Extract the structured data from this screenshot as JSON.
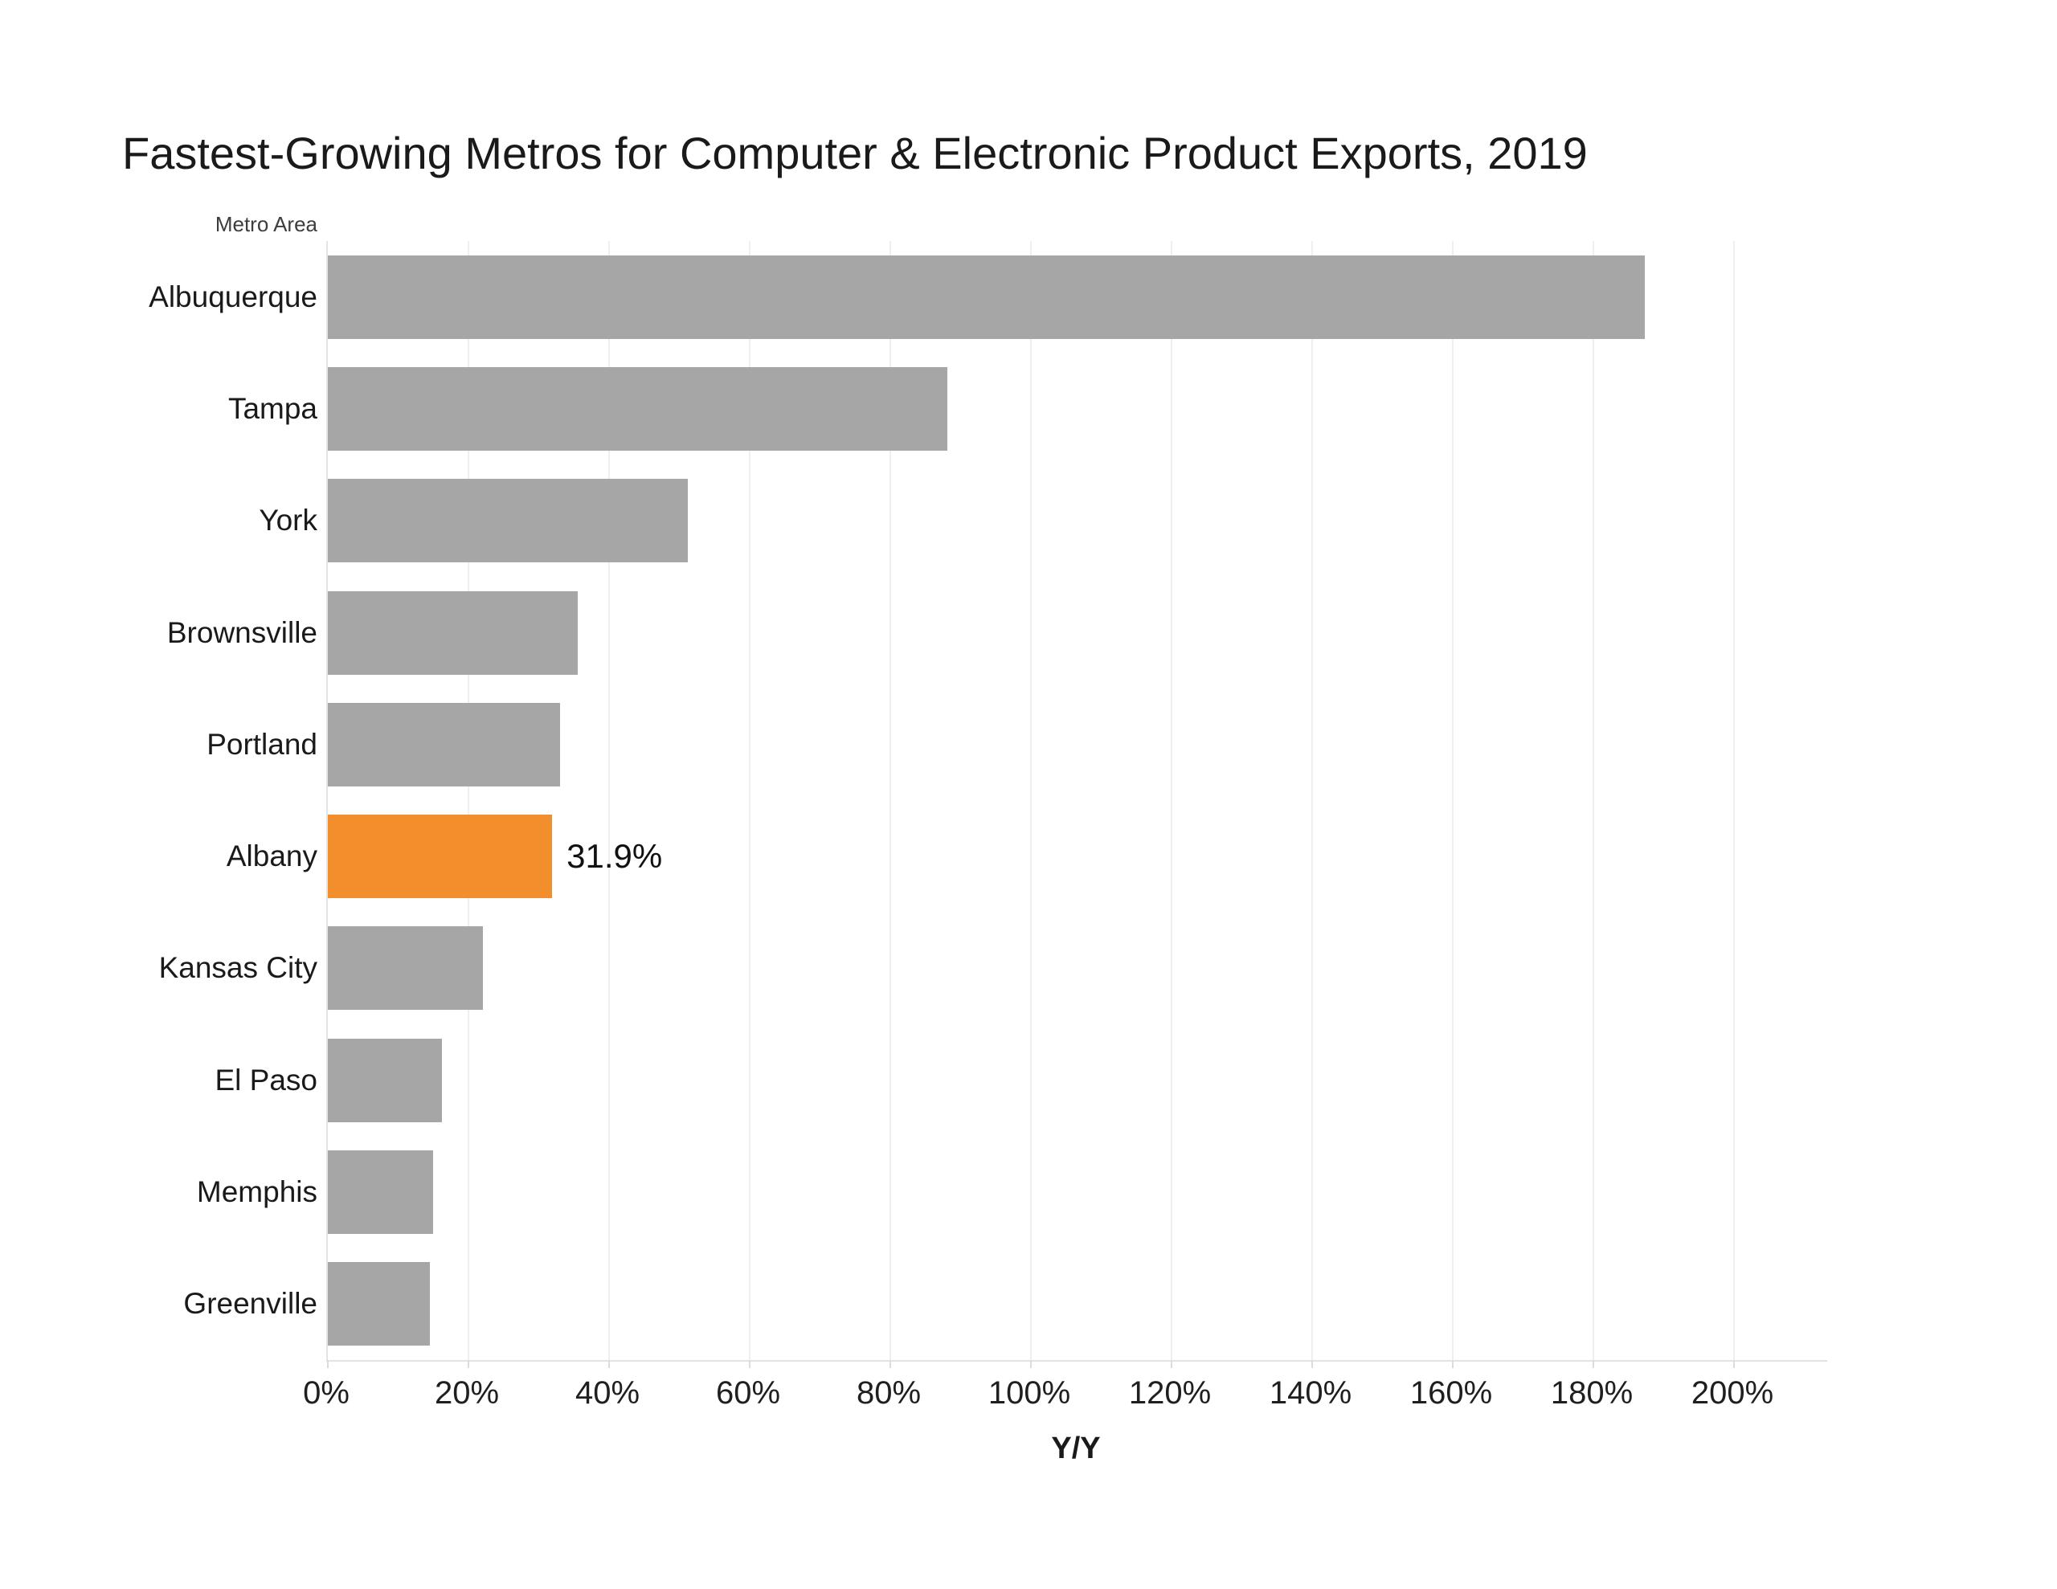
{
  "chart_data": {
    "type": "bar",
    "orientation": "horizontal",
    "title": "Fastest-Growing Metros for Computer & Electronic Product Exports, 2019",
    "column_header": "Metro Area",
    "xlabel": "Y/Y",
    "categories": [
      "Albuquerque",
      "Tampa",
      "York",
      "Brownsville",
      "Portland",
      "Albany",
      "Kansas City",
      "El Paso",
      "Memphis",
      "Greenville"
    ],
    "values": [
      187.3,
      88.1,
      51.2,
      35.5,
      33.0,
      31.9,
      22.0,
      16.2,
      15.0,
      14.5
    ],
    "value_unit": "%",
    "xlim": [
      0,
      200
    ],
    "x_tick_step": 20,
    "x_tick_labels": [
      "0%",
      "20%",
      "40%",
      "60%",
      "80%",
      "100%",
      "120%",
      "140%",
      "160%",
      "180%",
      "200%"
    ],
    "highlight_index": 5,
    "highlight_label": "31.9%",
    "bar_color": "#A6A6A6",
    "highlight_color": "#F28E2B",
    "grid": true,
    "legend": "none"
  }
}
